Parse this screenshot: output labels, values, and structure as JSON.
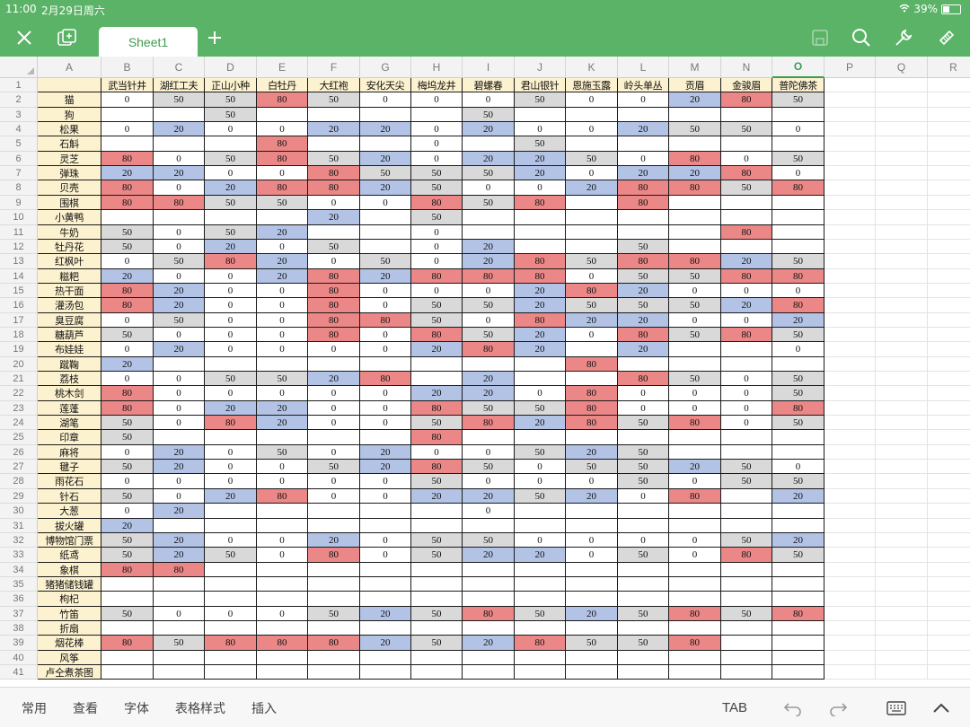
{
  "status_bar": {
    "time": "11:00",
    "date": "2月29日周六",
    "battery": "39%"
  },
  "toolbar": {
    "close_icon": "close-icon",
    "add_sheet_icon": "new-sheet-icon",
    "sheet_tab": "Sheet1",
    "plus_icon": "plus-icon",
    "right_icons": [
      "save-icon",
      "search-icon",
      "wrench-icon",
      "brush-icon"
    ]
  },
  "columns": [
    "A",
    "B",
    "C",
    "D",
    "E",
    "F",
    "G",
    "H",
    "I",
    "J",
    "K",
    "L",
    "M",
    "N",
    "O",
    "P",
    "Q",
    "R"
  ],
  "active_column": "O",
  "colors": {
    "red": "#eb8787",
    "blue": "#b3c3e6",
    "gray": "#d9d9d9",
    "label_bg": "#fdf2cf",
    "accent": "#5ab366"
  },
  "headers": [
    "武当针井",
    "湖红工夫",
    "正山小种",
    "白牡丹",
    "大红袍",
    "安化天尖",
    "梅坞龙井",
    "碧螺春",
    "君山银针",
    "恩施玉露",
    "岭头单丛",
    "贡眉",
    "金骏眉",
    "普陀佛茶"
  ],
  "rows": [
    {
      "n": "2",
      "label": "猫",
      "cells": [
        "0",
        "50",
        "50",
        "80",
        "50",
        "0",
        "0",
        "0",
        "50",
        "0",
        "0",
        "20",
        "80",
        "50"
      ]
    },
    {
      "n": "3",
      "label": "狗",
      "cells": [
        "",
        "",
        "50",
        "",
        "",
        "",
        "",
        "50",
        "",
        "",
        "",
        "",
        "",
        ""
      ]
    },
    {
      "n": "4",
      "label": "松果",
      "cells": [
        "0",
        "20",
        "0",
        "0",
        "20",
        "20",
        "0",
        "20",
        "0",
        "0",
        "20",
        "50",
        "50",
        "0"
      ]
    },
    {
      "n": "5",
      "label": "石斛",
      "cells": [
        "",
        "",
        "",
        "80",
        "",
        "",
        "0",
        "",
        "50",
        "",
        "",
        "",
        "",
        ""
      ]
    },
    {
      "n": "6",
      "label": "灵芝",
      "cells": [
        "80",
        "0",
        "50",
        "80",
        "50",
        "20",
        "0",
        "20",
        "20",
        "50",
        "0",
        "80",
        "0",
        "50"
      ]
    },
    {
      "n": "7",
      "label": "弹珠",
      "cells": [
        "20",
        "20",
        "0",
        "0",
        "80",
        "50",
        "50",
        "50",
        "20",
        "0",
        "20",
        "20",
        "80",
        "0"
      ]
    },
    {
      "n": "8",
      "label": "贝壳",
      "cells": [
        "80",
        "0",
        "20",
        "80",
        "80",
        "20",
        "50",
        "0",
        "0",
        "20",
        "80",
        "80",
        "50",
        "80"
      ]
    },
    {
      "n": "9",
      "label": "围棋",
      "cells": [
        "80",
        "80",
        "50",
        "50",
        "0",
        "0",
        "80",
        "50",
        "80",
        "",
        "80",
        "",
        "",
        ""
      ]
    },
    {
      "n": "10",
      "label": "小黄鸭",
      "cells": [
        "",
        "",
        "",
        "",
        "20",
        "",
        "50",
        "",
        "",
        "",
        "",
        "",
        "",
        ""
      ]
    },
    {
      "n": "11",
      "label": "牛奶",
      "cells": [
        "50",
        "0",
        "50",
        "20",
        "",
        "",
        "0",
        "",
        "",
        "",
        "",
        "",
        "80",
        ""
      ]
    },
    {
      "n": "12",
      "label": "牡丹花",
      "cells": [
        "50",
        "0",
        "20",
        "0",
        "50",
        "",
        "0",
        "20",
        "",
        "",
        "50",
        "",
        "",
        ""
      ]
    },
    {
      "n": "13",
      "label": "红枫叶",
      "cells": [
        "0",
        "50",
        "80",
        "20",
        "0",
        "50",
        "0",
        "20",
        "80",
        "50",
        "80",
        "80",
        "20",
        "50"
      ]
    },
    {
      "n": "14",
      "label": "糍粑",
      "cells": [
        "20",
        "0",
        "0",
        "20",
        "80",
        "20",
        "80",
        "80",
        "80",
        "0",
        "50",
        "50",
        "80",
        "80"
      ]
    },
    {
      "n": "15",
      "label": "热干面",
      "cells": [
        "80",
        "20",
        "0",
        "0",
        "80",
        "0",
        "0",
        "0",
        "20",
        "80",
        "20",
        "0",
        "0",
        "0"
      ]
    },
    {
      "n": "16",
      "label": "灌汤包",
      "cells": [
        "80",
        "20",
        "0",
        "0",
        "80",
        "0",
        "50",
        "50",
        "20",
        "50",
        "50",
        "50",
        "20",
        "80"
      ]
    },
    {
      "n": "17",
      "label": "臭豆腐",
      "cells": [
        "0",
        "50",
        "0",
        "0",
        "80",
        "80",
        "50",
        "0",
        "80",
        "20",
        "20",
        "0",
        "0",
        "20"
      ]
    },
    {
      "n": "18",
      "label": "糖葫芦",
      "cells": [
        "50",
        "0",
        "0",
        "0",
        "80",
        "0",
        "80",
        "50",
        "20",
        "0",
        "80",
        "50",
        "80",
        "50"
      ]
    },
    {
      "n": "19",
      "label": "布娃娃",
      "cells": [
        "0",
        "20",
        "0",
        "0",
        "0",
        "0",
        "20",
        "80",
        "20",
        "",
        "20",
        "",
        "",
        "0"
      ]
    },
    {
      "n": "20",
      "label": "蹴鞠",
      "cells": [
        "20",
        "",
        "",
        "",
        "",
        "",
        "",
        "",
        "",
        "80",
        "",
        "",
        "",
        ""
      ]
    },
    {
      "n": "21",
      "label": "荔枝",
      "cells": [
        "0",
        "0",
        "50",
        "50",
        "20",
        "80",
        "",
        "20",
        "",
        "",
        "80",
        "50",
        "0",
        "50"
      ]
    },
    {
      "n": "22",
      "label": "桃木剑",
      "cells": [
        "80",
        "0",
        "0",
        "0",
        "0",
        "0",
        "20",
        "20",
        "0",
        "80",
        "0",
        "0",
        "0",
        "50"
      ]
    },
    {
      "n": "23",
      "label": "莲蓬",
      "cells": [
        "80",
        "0",
        "20",
        "20",
        "0",
        "0",
        "80",
        "50",
        "50",
        "80",
        "0",
        "0",
        "0",
        "80"
      ]
    },
    {
      "n": "24",
      "label": "湖笔",
      "cells": [
        "50",
        "0",
        "80",
        "20",
        "0",
        "0",
        "50",
        "80",
        "20",
        "80",
        "50",
        "80",
        "0",
        "50"
      ]
    },
    {
      "n": "25",
      "label": "印章",
      "cells": [
        "50",
        "",
        "",
        "",
        "",
        "",
        "80",
        "",
        "",
        "",
        "",
        "",
        "",
        ""
      ]
    },
    {
      "n": "26",
      "label": "麻将",
      "cells": [
        "0",
        "20",
        "0",
        "50",
        "0",
        "20",
        "0",
        "0",
        "50",
        "20",
        "50",
        "",
        "",
        ""
      ]
    },
    {
      "n": "27",
      "label": "毽子",
      "cells": [
        "50",
        "20",
        "0",
        "0",
        "50",
        "20",
        "80",
        "50",
        "0",
        "50",
        "50",
        "20",
        "50",
        "0"
      ]
    },
    {
      "n": "28",
      "label": "雨花石",
      "cells": [
        "0",
        "0",
        "0",
        "0",
        "0",
        "0",
        "50",
        "0",
        "0",
        "0",
        "50",
        "0",
        "50",
        "50"
      ]
    },
    {
      "n": "29",
      "label": "针石",
      "cells": [
        "50",
        "0",
        "20",
        "80",
        "0",
        "0",
        "20",
        "20",
        "50",
        "20",
        "0",
        "80",
        "",
        "20"
      ]
    },
    {
      "n": "30",
      "label": "大葱",
      "cells": [
        "0",
        "20",
        "",
        "",
        "",
        "",
        "",
        "0",
        "",
        "",
        "",
        "",
        "",
        ""
      ]
    },
    {
      "n": "31",
      "label": "拔火罐",
      "cells": [
        "20",
        "",
        "",
        "",
        "",
        "",
        "",
        "",
        "",
        "",
        "",
        "",
        "",
        ""
      ]
    },
    {
      "n": "32",
      "label": "博物馆门票",
      "cells": [
        "50",
        "20",
        "0",
        "0",
        "20",
        "0",
        "50",
        "50",
        "0",
        "0",
        "0",
        "0",
        "50",
        "20"
      ]
    },
    {
      "n": "33",
      "label": "纸鸢",
      "cells": [
        "50",
        "20",
        "50",
        "0",
        "80",
        "0",
        "50",
        "20",
        "20",
        "0",
        "50",
        "0",
        "80",
        "50"
      ]
    },
    {
      "n": "34",
      "label": "象棋",
      "cells": [
        "80",
        "80",
        "",
        "",
        "",
        "",
        "",
        "",
        "",
        "",
        "",
        "",
        "",
        ""
      ]
    },
    {
      "n": "35",
      "label": "猪猪储钱罐",
      "cells": [
        "",
        "",
        "",
        "",
        "",
        "",
        "",
        "",
        "",
        "",
        "",
        "",
        "",
        ""
      ]
    },
    {
      "n": "36",
      "label": "枸杞",
      "cells": [
        "",
        "",
        "",
        "",
        "",
        "",
        "",
        "",
        "",
        "",
        "",
        "",
        "",
        ""
      ]
    },
    {
      "n": "37",
      "label": "竹笛",
      "cells": [
        "50",
        "0",
        "0",
        "0",
        "50",
        "20",
        "50",
        "80",
        "50",
        "20",
        "50",
        "80",
        "50",
        "80"
      ]
    },
    {
      "n": "38",
      "label": "折扇",
      "cells": [
        "",
        "",
        "",
        "",
        "",
        "",
        "",
        "",
        "",
        "",
        "",
        "",
        "",
        ""
      ]
    },
    {
      "n": "39",
      "label": "烟花棒",
      "cells": [
        "80",
        "50",
        "80",
        "80",
        "80",
        "20",
        "50",
        "20",
        "80",
        "50",
        "50",
        "80",
        "",
        ""
      ]
    },
    {
      "n": "40",
      "label": "风筝",
      "cells": [
        "",
        "",
        "",
        "",
        "",
        "",
        "",
        "",
        "",
        "",
        "",
        "",
        "",
        ""
      ]
    },
    {
      "n": "41",
      "label": "卢仝煮茶图",
      "cells": [
        "",
        "",
        "",
        "",
        "",
        "",
        "",
        "",
        "",
        "",
        "",
        "",
        "",
        ""
      ]
    }
  ],
  "bottom_bar": {
    "menu": [
      "常用",
      "查看",
      "字体",
      "表格样式",
      "插入"
    ],
    "tab_label": "TAB",
    "icons": [
      "undo-icon",
      "redo-icon",
      "keyboard-icon",
      "collapse-icon"
    ]
  }
}
